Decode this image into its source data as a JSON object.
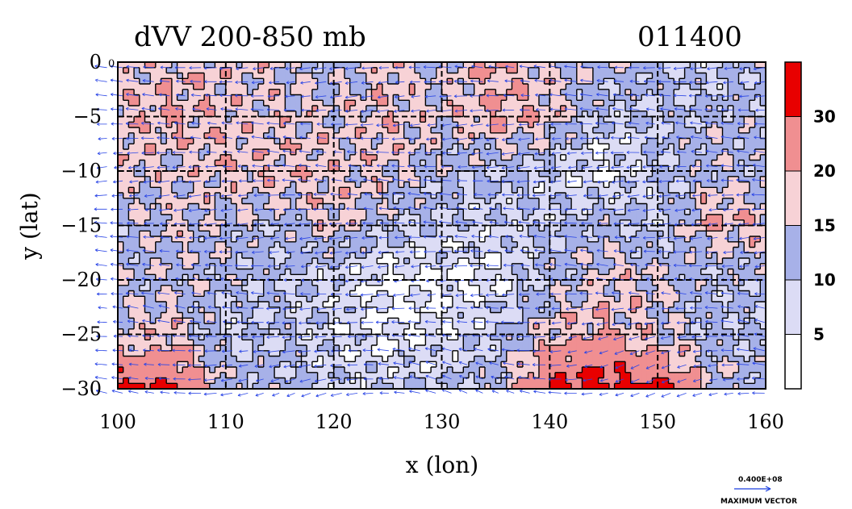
{
  "chart_data": {
    "type": "heatmap",
    "title": "dVV 200-850 mb",
    "date_label": "011400",
    "corner_label": "0",
    "xlabel": "x (lon)",
    "ylabel": "y (lat)",
    "xlim": [
      100,
      160
    ],
    "ylim": [
      -30,
      0
    ],
    "x_ticks": [
      100,
      110,
      120,
      130,
      140,
      150,
      160
    ],
    "y_ticks": [
      0,
      -5,
      -10,
      -15,
      -20,
      -25,
      -30
    ],
    "x_tick_labels": [
      "100",
      "110",
      "120",
      "130",
      "140",
      "150",
      "160"
    ],
    "y_tick_labels": [
      "0",
      "−5",
      "−10",
      "−15",
      "−20",
      "−25",
      "−30"
    ],
    "grid": true,
    "colorbar": {
      "levels": [
        5,
        10,
        15,
        20,
        30
      ],
      "labels": [
        "5",
        "10",
        "15",
        "20",
        "30"
      ],
      "colors": [
        "#ffffff",
        "#dcdcf5",
        "#a7b1e8",
        "#f7d2d6",
        "#f08f91",
        "#e80000"
      ]
    },
    "vector_reference": {
      "value_label": "0.400E+08",
      "caption": "MAXIMUM VECTOR"
    },
    "field": {
      "description_levels": "approximate magnitude by region (units of colorbar)",
      "lon": [
        100,
        105,
        110,
        115,
        120,
        125,
        130,
        135,
        140,
        145,
        150,
        155,
        160
      ],
      "lat": [
        0,
        -5,
        -10,
        -15,
        -20,
        -25,
        -30
      ],
      "values": [
        [
          16,
          18,
          17,
          16,
          12,
          18,
          14,
          20,
          16,
          14,
          12,
          8,
          12
        ],
        [
          18,
          20,
          18,
          17,
          16,
          18,
          16,
          21,
          18,
          9,
          10,
          12,
          12
        ],
        [
          17,
          16,
          18,
          19,
          18,
          17,
          12,
          11,
          8,
          4,
          10,
          14,
          12
        ],
        [
          12,
          16,
          14,
          12,
          18,
          11,
          9,
          8,
          9,
          13,
          8,
          20,
          18
        ],
        [
          13,
          14,
          12,
          10,
          7,
          4,
          4,
          5,
          12,
          17,
          16,
          10,
          12
        ],
        [
          16,
          18,
          9,
          10,
          7,
          4,
          6,
          9,
          18,
          20,
          16,
          11,
          10
        ],
        [
          32,
          30,
          14,
          12,
          8,
          10,
          9,
          14,
          30,
          35,
          32,
          16,
          12
        ]
      ]
    }
  }
}
